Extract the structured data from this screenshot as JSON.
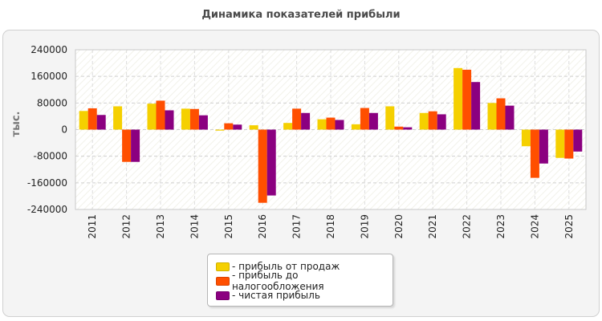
{
  "chart_data": {
    "type": "bar",
    "title": "Динамика показателей прибыли",
    "ylabel": "тыс.",
    "xlabel": "",
    "ylim": [
      -240000,
      240000
    ],
    "yticks": [
      "240000",
      "160000",
      "80000",
      "0",
      "-80000",
      "-160000",
      "-240000"
    ],
    "grid": true,
    "legend_position": "bottom",
    "categories": [
      "2011",
      "2012",
      "2013",
      "2014",
      "2015",
      "2016",
      "2017",
      "2018",
      "2019",
      "2020",
      "2021",
      "2022",
      "2023",
      "2024",
      "2025"
    ],
    "series": [
      {
        "name": "- прибыль от продаж",
        "color": "#f5d000",
        "values": [
          56000,
          70000,
          78000,
          63000,
          -3000,
          13000,
          20000,
          31000,
          16000,
          70000,
          50000,
          185000,
          80000,
          -50000,
          -85000
        ]
      },
      {
        "name": "- прибыль до налогообложения",
        "color": "#ff4f00",
        "values": [
          64000,
          -97000,
          87000,
          62000,
          19000,
          -220000,
          63000,
          36000,
          65000,
          9000,
          55000,
          180000,
          94000,
          -145000,
          -87000
        ]
      },
      {
        "name": "- чистая прибыль",
        "color": "#8b0080",
        "values": [
          44000,
          -97000,
          58000,
          43000,
          15000,
          -198000,
          50000,
          29000,
          50000,
          7000,
          46000,
          143000,
          72000,
          -102000,
          -66000
        ]
      }
    ]
  }
}
